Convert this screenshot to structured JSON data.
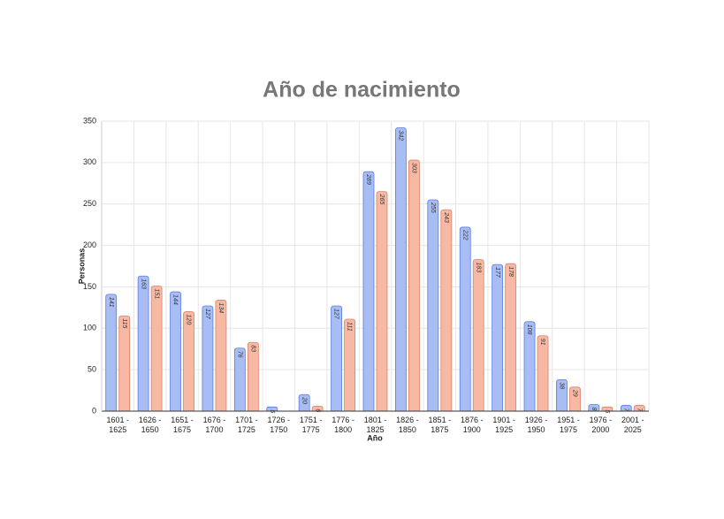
{
  "chart_data": {
    "type": "bar",
    "title": "Año de nacimiento",
    "x_label": "Año",
    "y_label": "Personas",
    "categories": [
      "1601 - 1625",
      "1626 - 1650",
      "1651 - 1675",
      "1676 - 1700",
      "1701 - 1725",
      "1726 - 1750",
      "1751 - 1775",
      "1776 - 1800",
      "1801 - 1825",
      "1826 - 1850",
      "1851 - 1875",
      "1876 - 1900",
      "1901 - 1925",
      "1926 - 1950",
      "1951 - 1975",
      "1976 - 2000",
      "2001 - 2025"
    ],
    "series": [
      {
        "color": "#a9bdf5",
        "values": [
          141,
          163,
          144,
          127,
          76,
          5,
          20,
          127,
          289,
          342,
          255,
          222,
          177,
          108,
          38,
          8,
          7
        ]
      },
      {
        "color": "#f8b9a4",
        "values": [
          115,
          151,
          120,
          134,
          83,
          null,
          6,
          111,
          265,
          303,
          243,
          183,
          178,
          91,
          29,
          5,
          7
        ]
      }
    ],
    "ylim": [
      0,
      350
    ],
    "yticks": [
      0,
      50,
      100,
      150,
      200,
      250,
      300,
      350
    ],
    "grid": true
  }
}
